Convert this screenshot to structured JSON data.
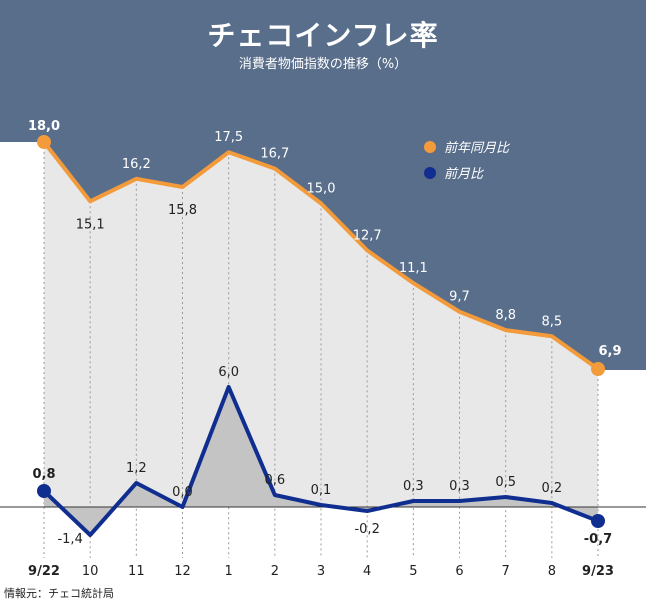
{
  "chart_data": {
    "type": "line",
    "title": "チェコインフレ率",
    "subtitle": "消費者物価指数の推移（%）",
    "categories": [
      "9/22",
      "10",
      "11",
      "12",
      "1",
      "2",
      "3",
      "4",
      "5",
      "6",
      "7",
      "8",
      "9/23"
    ],
    "category_labels": [
      "9/22",
      "10",
      "11",
      "12",
      "1",
      "2",
      "3",
      "4",
      "5",
      "6",
      "7",
      "8",
      "9/23"
    ],
    "series": [
      {
        "name": "前年同月比",
        "color": "#f39a3a",
        "values": [
          18.0,
          15.1,
          16.2,
          15.8,
          17.5,
          16.7,
          15.0,
          12.7,
          11.1,
          9.7,
          8.8,
          8.5,
          6.9
        ],
        "labels": [
          "18,0",
          "15,1",
          "16,2",
          "15,8",
          "17,5",
          "16,7",
          "15,0",
          "12,7",
          "11,1",
          "9,7",
          "8,8",
          "8,5",
          "6,9"
        ]
      },
      {
        "name": "前月比",
        "color": "#0f2e8f",
        "values": [
          0.8,
          -1.4,
          1.2,
          0.0,
          6.0,
          0.6,
          0.1,
          -0.2,
          0.3,
          0.3,
          0.5,
          0.2,
          -0.7
        ],
        "labels": [
          "0,8",
          "-1,4",
          "1,2",
          "0,0",
          "6,0",
          "0,6",
          "0,1",
          "-0,2",
          "0,3",
          "0,3",
          "0,5",
          "0,2",
          "-0,7"
        ]
      }
    ],
    "grid": true,
    "legend_position": "top-right"
  },
  "source": "情報元：チェコ統計局",
  "colors": {
    "banner": "#596e8b",
    "plot_fill": "#e8e8e8",
    "yoy_line": "#f39a3a",
    "mom_line": "#0f2e8f"
  }
}
